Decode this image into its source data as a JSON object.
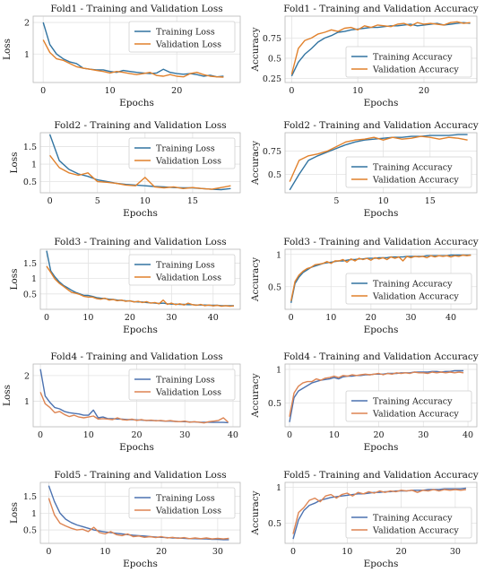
{
  "chart_data": [
    {
      "id": "f1-loss",
      "type": "line",
      "title": "Fold1 - Training and Validation Loss",
      "xlabel": "Epochs",
      "ylabel": "Loss",
      "xlim": [
        -1.5,
        29.5
      ],
      "ylim": [
        0.1,
        2.2
      ],
      "xticks": [
        0,
        10,
        20
      ],
      "yticks": [
        1,
        2
      ],
      "grid": true,
      "legend": "top-right",
      "series": [
        {
          "name": "Training Loss",
          "color": "#3274a1",
          "values": [
            2.0,
            1.3,
            1.0,
            0.85,
            0.75,
            0.7,
            0.55,
            0.52,
            0.5,
            0.5,
            0.45,
            0.42,
            0.48,
            0.45,
            0.42,
            0.4,
            0.38,
            0.4,
            0.52,
            0.42,
            0.38,
            0.36,
            0.38,
            0.35,
            0.3,
            0.33,
            0.28,
            0.3
          ]
        },
        {
          "name": "Validation Loss",
          "color": "#e1812c",
          "values": [
            1.45,
            1.05,
            0.85,
            0.8,
            0.7,
            0.6,
            0.55,
            0.52,
            0.48,
            0.45,
            0.4,
            0.45,
            0.42,
            0.38,
            0.35,
            0.38,
            0.42,
            0.32,
            0.3,
            0.35,
            0.3,
            0.28,
            0.38,
            0.42,
            0.35,
            0.3,
            0.28,
            0.27
          ]
        }
      ]
    },
    {
      "id": "f1-acc",
      "type": "line",
      "title": "Fold1 - Training and Validation Accuracy",
      "xlabel": "Epochs",
      "ylabel": "Accuracy",
      "xlim": [
        -1,
        28
      ],
      "ylim": [
        0.2,
        1.02
      ],
      "xticks": [
        0,
        10,
        20
      ],
      "yticks": [
        0.25,
        0.5,
        0.75
      ],
      "grid": true,
      "legend": "bottom-right",
      "series": [
        {
          "name": "Training Accuracy",
          "color": "#3274a1",
          "values": [
            0.28,
            0.45,
            0.55,
            0.62,
            0.7,
            0.75,
            0.78,
            0.82,
            0.83,
            0.85,
            0.86,
            0.87,
            0.88,
            0.88,
            0.89,
            0.9,
            0.9,
            0.91,
            0.92,
            0.9,
            0.91,
            0.92,
            0.93,
            0.91,
            0.92,
            0.93,
            0.94,
            0.93
          ]
        },
        {
          "name": "Validation Accuracy",
          "color": "#e1812c",
          "values": [
            0.3,
            0.62,
            0.72,
            0.75,
            0.8,
            0.82,
            0.85,
            0.83,
            0.87,
            0.88,
            0.85,
            0.9,
            0.88,
            0.91,
            0.9,
            0.89,
            0.92,
            0.93,
            0.9,
            0.94,
            0.92,
            0.93,
            0.92,
            0.91,
            0.94,
            0.95,
            0.93,
            0.94
          ]
        }
      ]
    },
    {
      "id": "f2-loss",
      "type": "line",
      "title": "Fold2 - Training and Validation Loss",
      "xlabel": "Epochs",
      "ylabel": "Loss",
      "xlim": [
        -1,
        20
      ],
      "ylim": [
        0.18,
        1.9
      ],
      "xticks": [
        0,
        5,
        10,
        15
      ],
      "yticks": [
        0.5,
        1.0,
        1.5
      ],
      "grid": true,
      "legend": "top-right",
      "series": [
        {
          "name": "Training Loss",
          "color": "#3274a1",
          "values": [
            1.85,
            1.1,
            0.85,
            0.72,
            0.65,
            0.55,
            0.5,
            0.45,
            0.42,
            0.4,
            0.38,
            0.36,
            0.35,
            0.33,
            0.32,
            0.32,
            0.3,
            0.28,
            0.27,
            0.3
          ]
        },
        {
          "name": "Validation Loss",
          "color": "#e1812c",
          "values": [
            1.25,
            0.9,
            0.75,
            0.68,
            0.75,
            0.5,
            0.48,
            0.45,
            0.4,
            0.38,
            0.62,
            0.35,
            0.32,
            0.35,
            0.3,
            0.33,
            0.3,
            0.28,
            0.33,
            0.38
          ]
        }
      ]
    },
    {
      "id": "f2-acc",
      "type": "line",
      "title": "Fold2 - Training and Validation Accuracy",
      "xlabel": "Epochs",
      "ylabel": "Accuracy",
      "xlim": [
        -0.5,
        20
      ],
      "ylim": [
        0.3,
        0.95
      ],
      "xticks": [
        5,
        10,
        15
      ],
      "yticks": [
        0.5,
        0.75
      ],
      "grid": true,
      "legend": "bottom-right",
      "series": [
        {
          "name": "Training Accuracy",
          "color": "#3274a1",
          "values": [
            0.33,
            0.5,
            0.65,
            0.7,
            0.74,
            0.78,
            0.82,
            0.85,
            0.87,
            0.88,
            0.89,
            0.9,
            0.9,
            0.91,
            0.91,
            0.92,
            0.92,
            0.92,
            0.93,
            0.93
          ]
        },
        {
          "name": "Validation Accuracy",
          "color": "#e1812c",
          "values": [
            0.42,
            0.65,
            0.7,
            0.72,
            0.75,
            0.8,
            0.85,
            0.87,
            0.88,
            0.9,
            0.87,
            0.9,
            0.88,
            0.89,
            0.91,
            0.9,
            0.88,
            0.9,
            0.89,
            0.87
          ]
        }
      ]
    },
    {
      "id": "f3-loss",
      "type": "line",
      "title": "Fold3 - Training and Validation Loss",
      "xlabel": "Epochs",
      "ylabel": "Loss",
      "xlim": [
        -1.5,
        46.5
      ],
      "ylim": [
        0.0,
        1.95
      ],
      "xticks": [
        0,
        10,
        20,
        30,
        40
      ],
      "yticks": [
        0.5,
        1.0,
        1.5
      ],
      "grid": true,
      "legend": "top-right",
      "series": [
        {
          "name": "Training Loss",
          "color": "#3274a1",
          "values": [
            1.9,
            1.25,
            1.05,
            0.9,
            0.78,
            0.7,
            0.62,
            0.55,
            0.5,
            0.45,
            0.45,
            0.42,
            0.38,
            0.36,
            0.35,
            0.33,
            0.32,
            0.3,
            0.29,
            0.28,
            0.27,
            0.25,
            0.24,
            0.24,
            0.22,
            0.21,
            0.2,
            0.19,
            0.2,
            0.18,
            0.17,
            0.17,
            0.16,
            0.16,
            0.15,
            0.15,
            0.14,
            0.14,
            0.14,
            0.13,
            0.13,
            0.13,
            0.12,
            0.12,
            0.12,
            0.12
          ]
        },
        {
          "name": "Validation Loss",
          "color": "#e1812c",
          "values": [
            1.4,
            1.2,
            0.98,
            0.85,
            0.75,
            0.65,
            0.55,
            0.52,
            0.48,
            0.42,
            0.4,
            0.4,
            0.35,
            0.33,
            0.36,
            0.3,
            0.32,
            0.28,
            0.3,
            0.26,
            0.28,
            0.24,
            0.26,
            0.22,
            0.25,
            0.2,
            0.22,
            0.18,
            0.3,
            0.16,
            0.2,
            0.15,
            0.18,
            0.14,
            0.2,
            0.15,
            0.13,
            0.16,
            0.12,
            0.14,
            0.11,
            0.13,
            0.1,
            0.12,
            0.1,
            0.11
          ]
        }
      ]
    },
    {
      "id": "f3-acc",
      "type": "line",
      "title": "Fold3 - Training and Validation Accuracy",
      "xlabel": "Epochs",
      "ylabel": "Accuracy",
      "xlim": [
        -1.5,
        46.5
      ],
      "ylim": [
        0.15,
        1.08
      ],
      "xticks": [
        0,
        10,
        20,
        30,
        40
      ],
      "yticks": [
        0.5,
        1.0
      ],
      "grid": true,
      "legend": "bottom-right",
      "series": [
        {
          "name": "Training Accuracy",
          "color": "#3274a1",
          "values": [
            0.25,
            0.55,
            0.65,
            0.72,
            0.76,
            0.8,
            0.82,
            0.84,
            0.86,
            0.87,
            0.88,
            0.89,
            0.9,
            0.9,
            0.91,
            0.92,
            0.92,
            0.93,
            0.93,
            0.94,
            0.94,
            0.94,
            0.95,
            0.95,
            0.95,
            0.96,
            0.96,
            0.96,
            0.96,
            0.97,
            0.97,
            0.97,
            0.97,
            0.97,
            0.98,
            0.98,
            0.98,
            0.98,
            0.98,
            0.98,
            0.99,
            0.99,
            0.99,
            0.99,
            0.99,
            0.99
          ]
        },
        {
          "name": "Validation Accuracy",
          "color": "#e1812c",
          "values": [
            0.28,
            0.58,
            0.68,
            0.74,
            0.78,
            0.8,
            0.84,
            0.85,
            0.86,
            0.89,
            0.86,
            0.9,
            0.9,
            0.92,
            0.88,
            0.93,
            0.9,
            0.94,
            0.92,
            0.94,
            0.91,
            0.95,
            0.93,
            0.95,
            0.92,
            0.96,
            0.94,
            0.96,
            0.9,
            0.97,
            0.95,
            0.97,
            0.96,
            0.97,
            0.95,
            0.98,
            0.96,
            0.98,
            0.97,
            0.98,
            0.96,
            0.98,
            0.97,
            0.99,
            0.98,
            0.99
          ]
        }
      ]
    },
    {
      "id": "f4-loss",
      "type": "line",
      "title": "Fold4 - Training and Validation Loss",
      "xlabel": "Epochs",
      "ylabel": "Loss",
      "xlim": [
        -1.5,
        41.5
      ],
      "ylim": [
        0.0,
        2.45
      ],
      "xticks": [
        0,
        10,
        20,
        30,
        40
      ],
      "yticks": [
        1,
        2
      ],
      "grid": true,
      "legend": "top-right",
      "series": [
        {
          "name": "Training Loss",
          "color": "#4c72b0",
          "values": [
            2.25,
            1.2,
            0.95,
            0.75,
            0.7,
            0.6,
            0.55,
            0.52,
            0.5,
            0.45,
            0.45,
            0.65,
            0.35,
            0.38,
            0.32,
            0.32,
            0.3,
            0.3,
            0.28,
            0.28,
            0.27,
            0.26,
            0.25,
            0.24,
            0.24,
            0.23,
            0.22,
            0.22,
            0.21,
            0.2,
            0.2,
            0.19,
            0.19,
            0.18,
            0.18,
            0.18,
            0.17,
            0.17,
            0.17,
            0.16
          ]
        },
        {
          "name": "Validation Loss",
          "color": "#dd8452",
          "values": [
            1.35,
            0.9,
            0.75,
            0.55,
            0.6,
            0.48,
            0.4,
            0.45,
            0.38,
            0.35,
            0.38,
            0.42,
            0.3,
            0.32,
            0.3,
            0.28,
            0.35,
            0.28,
            0.26,
            0.3,
            0.25,
            0.28,
            0.24,
            0.26,
            0.23,
            0.25,
            0.22,
            0.24,
            0.21,
            0.2,
            0.22,
            0.18,
            0.2,
            0.18,
            0.15,
            0.2,
            0.22,
            0.25,
            0.35,
            0.18
          ]
        }
      ]
    },
    {
      "id": "f4-acc",
      "type": "line",
      "title": "Fold4 - Training and Validation Accuracy",
      "xlabel": "Epochs",
      "ylabel": "Accuracy",
      "xlim": [
        -1,
        42
      ],
      "ylim": [
        0.15,
        1.08
      ],
      "xticks": [
        0,
        10,
        20,
        30,
        40
      ],
      "yticks": [
        0.5,
        1.0
      ],
      "grid": true,
      "legend": "bottom-right",
      "series": [
        {
          "name": "Training Accuracy",
          "color": "#4c72b0",
          "values": [
            0.22,
            0.58,
            0.68,
            0.72,
            0.76,
            0.8,
            0.82,
            0.84,
            0.85,
            0.86,
            0.88,
            0.86,
            0.89,
            0.9,
            0.9,
            0.91,
            0.91,
            0.92,
            0.92,
            0.93,
            0.93,
            0.93,
            0.94,
            0.94,
            0.94,
            0.95,
            0.95,
            0.95,
            0.96,
            0.96,
            0.96,
            0.96,
            0.97,
            0.97,
            0.96,
            0.97,
            0.97,
            0.98,
            0.98,
            0.98
          ]
        },
        {
          "name": "Validation Accuracy",
          "color": "#dd8452",
          "values": [
            0.3,
            0.65,
            0.75,
            0.8,
            0.82,
            0.82,
            0.86,
            0.84,
            0.87,
            0.88,
            0.9,
            0.88,
            0.91,
            0.9,
            0.92,
            0.91,
            0.92,
            0.93,
            0.92,
            0.93,
            0.94,
            0.92,
            0.94,
            0.93,
            0.95,
            0.94,
            0.95,
            0.94,
            0.96,
            0.95,
            0.95,
            0.94,
            0.96,
            0.95,
            0.96,
            0.95,
            0.96,
            0.95,
            0.96,
            0.95
          ]
        }
      ]
    },
    {
      "id": "f5-loss",
      "type": "line",
      "title": "Fold5 - Training and Validation Loss",
      "xlabel": "Epochs",
      "ylabel": "Loss",
      "xlim": [
        -1.5,
        34
      ],
      "ylim": [
        0.1,
        1.92
      ],
      "xticks": [
        0,
        10,
        20,
        30
      ],
      "yticks": [
        0.5,
        1.0,
        1.5
      ],
      "grid": true,
      "legend": "top-right",
      "series": [
        {
          "name": "Training Loss",
          "color": "#4c72b0",
          "values": [
            1.82,
            1.35,
            1.0,
            0.82,
            0.72,
            0.65,
            0.6,
            0.55,
            0.5,
            0.47,
            0.44,
            0.42,
            0.4,
            0.38,
            0.36,
            0.34,
            0.33,
            0.32,
            0.3,
            0.29,
            0.28,
            0.27,
            0.26,
            0.26,
            0.25,
            0.24,
            0.24,
            0.23,
            0.23,
            0.22,
            0.22,
            0.21,
            0.21
          ]
        },
        {
          "name": "Validation Loss",
          "color": "#dd8452",
          "values": [
            1.45,
            0.95,
            0.7,
            0.62,
            0.55,
            0.5,
            0.52,
            0.45,
            0.58,
            0.42,
            0.38,
            0.45,
            0.36,
            0.33,
            0.38,
            0.3,
            0.32,
            0.28,
            0.3,
            0.27,
            0.3,
            0.26,
            0.28,
            0.25,
            0.27,
            0.24,
            0.26,
            0.24,
            0.26,
            0.23,
            0.25,
            0.23,
            0.25
          ]
        }
      ]
    },
    {
      "id": "f5-acc",
      "type": "line",
      "title": "Fold5 - Training and Validation Accuracy",
      "xlabel": "Epochs",
      "ylabel": "Accuracy",
      "xlim": [
        -1.5,
        34
      ],
      "ylim": [
        0.22,
        1.07
      ],
      "xticks": [
        0,
        10,
        20,
        30
      ],
      "yticks": [
        0.5,
        1.0
      ],
      "grid": true,
      "legend": "bottom-right",
      "series": [
        {
          "name": "Training Accuracy",
          "color": "#4c72b0",
          "values": [
            0.28,
            0.55,
            0.68,
            0.75,
            0.78,
            0.82,
            0.84,
            0.86,
            0.87,
            0.88,
            0.89,
            0.9,
            0.91,
            0.91,
            0.92,
            0.93,
            0.93,
            0.94,
            0.94,
            0.95,
            0.95,
            0.95,
            0.96,
            0.96,
            0.96,
            0.97,
            0.97,
            0.97,
            0.98,
            0.98,
            0.98,
            0.98,
            0.99
          ]
        },
        {
          "name": "Validation Accuracy",
          "color": "#dd8452",
          "values": [
            0.35,
            0.65,
            0.72,
            0.82,
            0.85,
            0.8,
            0.88,
            0.9,
            0.85,
            0.9,
            0.92,
            0.88,
            0.93,
            0.91,
            0.94,
            0.92,
            0.95,
            0.93,
            0.95,
            0.94,
            0.96,
            0.95,
            0.96,
            0.93,
            0.96,
            0.95,
            0.97,
            0.95,
            0.97,
            0.96,
            0.97,
            0.96,
            0.97
          ]
        }
      ]
    }
  ]
}
